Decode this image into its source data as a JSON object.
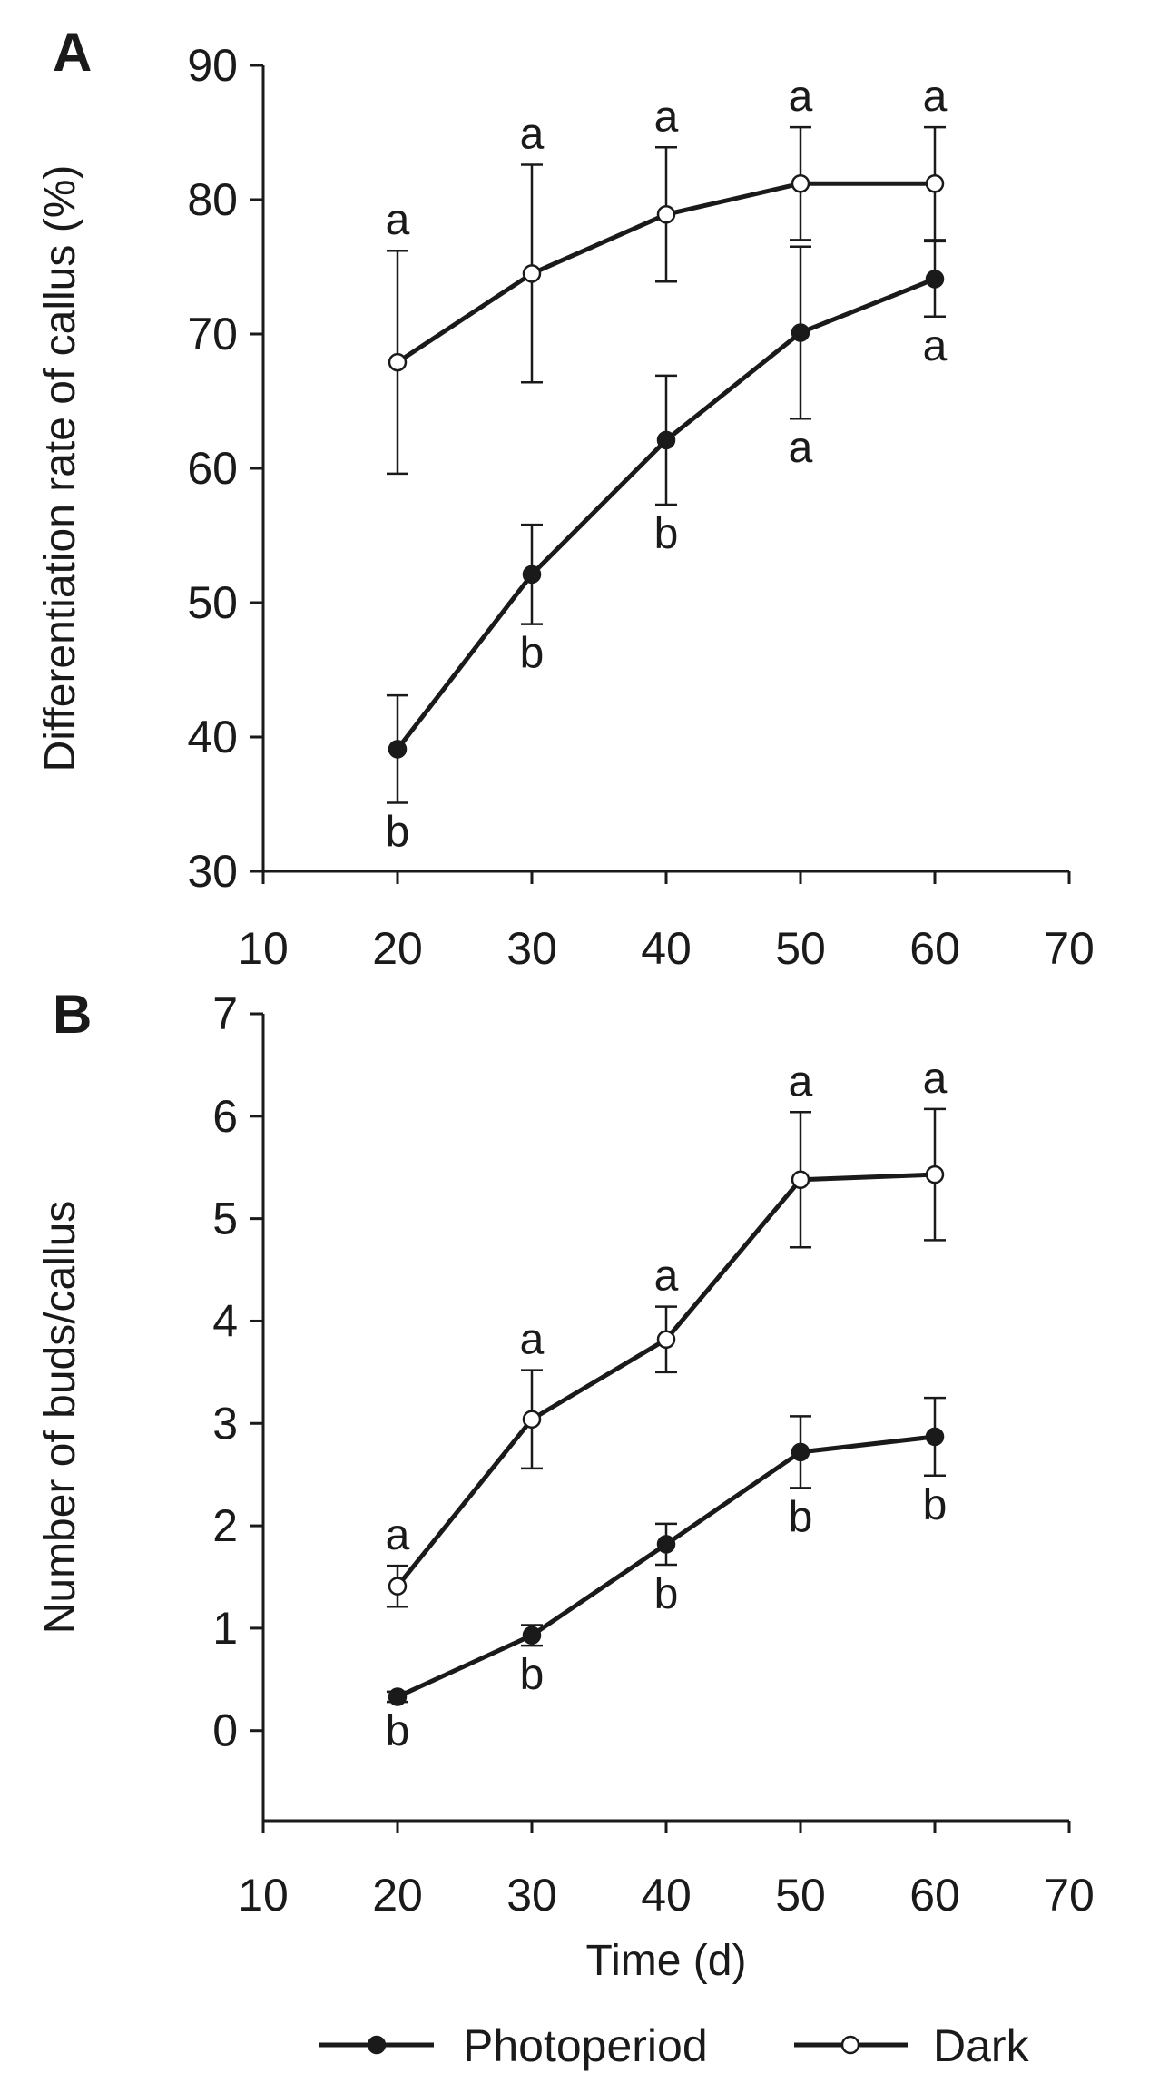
{
  "chart_data": [
    {
      "panel": "A",
      "type": "line",
      "xlabel": "",
      "ylabel": "Differentiation rate of callus (%)",
      "xlim": [
        10,
        70
      ],
      "ylim": [
        30,
        90
      ],
      "xticks": [
        10,
        20,
        30,
        40,
        50,
        60,
        70
      ],
      "yticks": [
        30,
        40,
        50,
        60,
        70,
        80,
        90
      ],
      "x": [
        20,
        30,
        40,
        50,
        60
      ],
      "series": [
        {
          "name": "Photoperiod",
          "marker": "filled-circle",
          "values": [
            39.1,
            52.1,
            62.1,
            70.1,
            74.1
          ],
          "error": [
            4.0,
            3.7,
            4.8,
            6.4,
            2.8
          ],
          "letters": [
            "b",
            "b",
            "b",
            "a",
            "a"
          ],
          "letter_side": "below"
        },
        {
          "name": "Dark",
          "marker": "open-circle",
          "values": [
            67.9,
            74.5,
            78.9,
            81.2,
            81.2
          ],
          "error": [
            8.3,
            8.1,
            5.0,
            4.2,
            4.2
          ],
          "letters": [
            "a",
            "a",
            "a",
            "a",
            "a"
          ],
          "letter_side": "above"
        }
      ]
    },
    {
      "panel": "B",
      "type": "line",
      "xlabel": "Time (d)",
      "ylabel": "Number of buds/callus",
      "xlim": [
        10,
        70
      ],
      "ylim": [
        -0.88,
        7
      ],
      "xticks": [
        10,
        20,
        30,
        40,
        50,
        60,
        70
      ],
      "yticks": [
        0,
        1,
        2,
        3,
        4,
        5,
        6,
        7
      ],
      "x": [
        20,
        30,
        40,
        50,
        60
      ],
      "series": [
        {
          "name": "Photoperiod",
          "marker": "filled-circle",
          "values": [
            0.33,
            0.93,
            1.82,
            2.72,
            2.87
          ],
          "error": [
            0.05,
            0.1,
            0.2,
            0.35,
            0.38
          ],
          "letters": [
            "b",
            "b",
            "b",
            "b",
            "b"
          ],
          "letter_side": "below"
        },
        {
          "name": "Dark",
          "marker": "open-circle",
          "values": [
            1.41,
            3.04,
            3.82,
            5.38,
            5.43
          ],
          "error": [
            0.2,
            0.48,
            0.32,
            0.66,
            0.64
          ],
          "letters": [
            "a",
            "a",
            "a",
            "a",
            "a"
          ],
          "letter_side": "above"
        }
      ]
    }
  ],
  "legend": {
    "position": "bottom-center",
    "items": [
      {
        "label": "Photoperiod",
        "marker": "filled-circle"
      },
      {
        "label": "Dark",
        "marker": "open-circle"
      }
    ]
  },
  "colors": {
    "ink": "#1a1a1a",
    "background": "#ffffff"
  }
}
